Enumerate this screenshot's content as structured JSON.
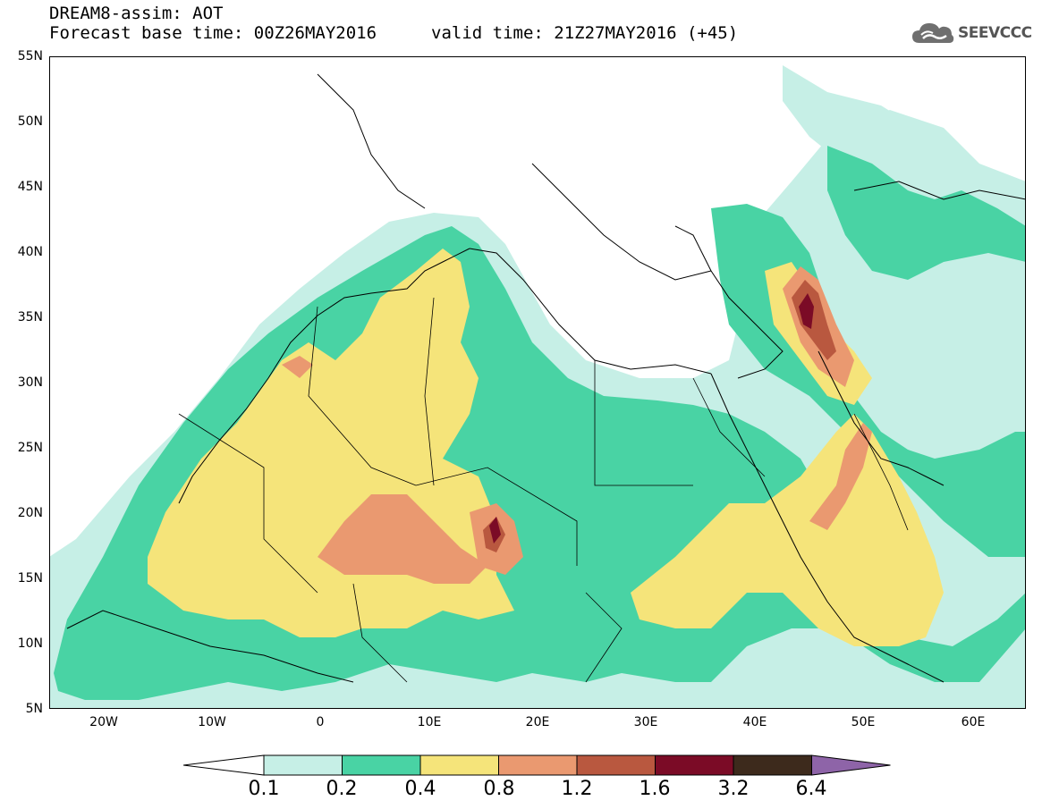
{
  "header": {
    "title_line1": "DREAM8-assim: AOT",
    "title_line2": "Forecast base time: 00Z26MAY2016",
    "valid_time": "valid time: 21Z27MAY2016 (+45)",
    "logo_text": "SEEVCCC"
  },
  "axes": {
    "lat_labels": [
      "55N",
      "50N",
      "45N",
      "40N",
      "35N",
      "30N",
      "25N",
      "20N",
      "15N",
      "10N",
      "5N"
    ],
    "lon_labels": [
      "20W",
      "10W",
      "0",
      "10E",
      "20E",
      "30E",
      "40E",
      "50E",
      "60E"
    ]
  },
  "colorbar": {
    "labels": [
      "0.1",
      "0.2",
      "0.4",
      "0.8",
      "1.2",
      "1.6",
      "3.2",
      "6.4"
    ],
    "colors": [
      "#ffffff",
      "#c6efe6",
      "#49d3a4",
      "#f5e47a",
      "#ea9970",
      "#b9583f",
      "#7b0b26",
      "#3d2a1c",
      "#8e64a8"
    ]
  },
  "colors": {
    "level_01": "#c6efe6",
    "level_02": "#49d3a4",
    "level_04": "#f5e47a",
    "level_08": "#ea9970",
    "level_12": "#b9583f",
    "level_16": "#7b0b26"
  }
}
